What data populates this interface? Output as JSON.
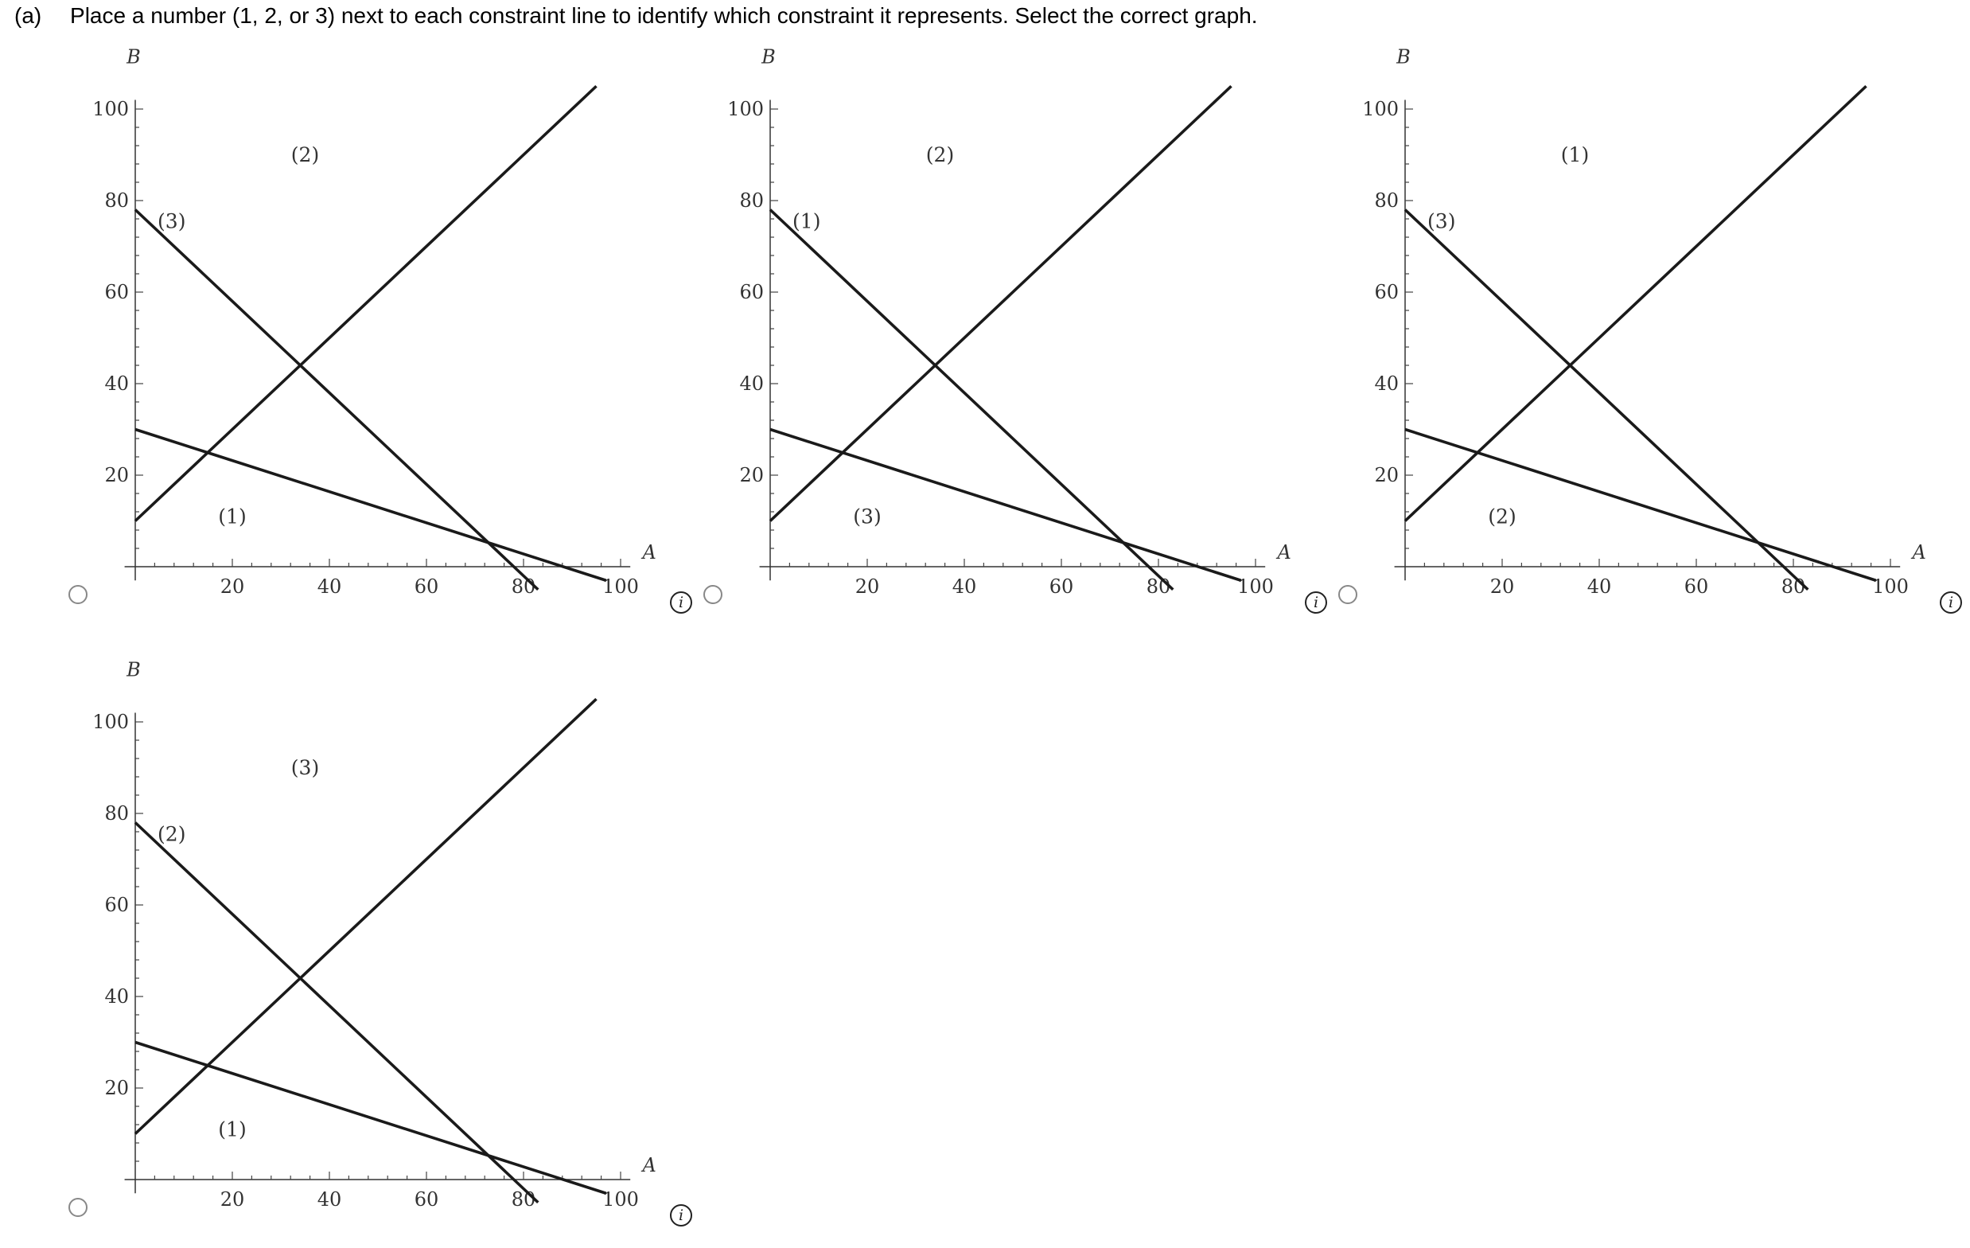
{
  "question": {
    "part": "(a)",
    "text": "Place a number (1, 2, or 3) next to each constraint line to identify which constraint it represents. Select the correct graph."
  },
  "icons": {
    "radio": "radio-circle",
    "info": "info-icon"
  },
  "info_glyph": "i",
  "axes": {
    "x_label": "A",
    "y_label": "B",
    "x_ticks": [
      "20",
      "40",
      "60",
      "80",
      "100"
    ],
    "y_ticks": [
      "20",
      "40",
      "60",
      "80",
      "100"
    ]
  },
  "options": [
    {
      "labels": {
        "steep_down": "(3)",
        "up": "(2)",
        "shallow_down": "(1)"
      }
    },
    {
      "labels": {
        "steep_down": "(1)",
        "up": "(2)",
        "shallow_down": "(3)"
      }
    },
    {
      "labels": {
        "steep_down": "(3)",
        "up": "(1)",
        "shallow_down": "(2)"
      }
    },
    {
      "labels": {
        "steep_down": "(2)",
        "up": "(3)",
        "shallow_down": "(1)"
      }
    }
  ],
  "chart_data": {
    "type": "line",
    "xlabel": "A",
    "ylabel": "B",
    "xlim": [
      0,
      100
    ],
    "ylim": [
      0,
      100
    ],
    "lines": [
      {
        "key": "steep_down",
        "x": [
          0,
          83
        ],
        "y": [
          78,
          -5
        ]
      },
      {
        "key": "up",
        "x": [
          0,
          95
        ],
        "y": [
          10,
          105
        ]
      },
      {
        "key": "shallow_down",
        "x": [
          0,
          97
        ],
        "y": [
          30,
          -3
        ]
      }
    ]
  }
}
